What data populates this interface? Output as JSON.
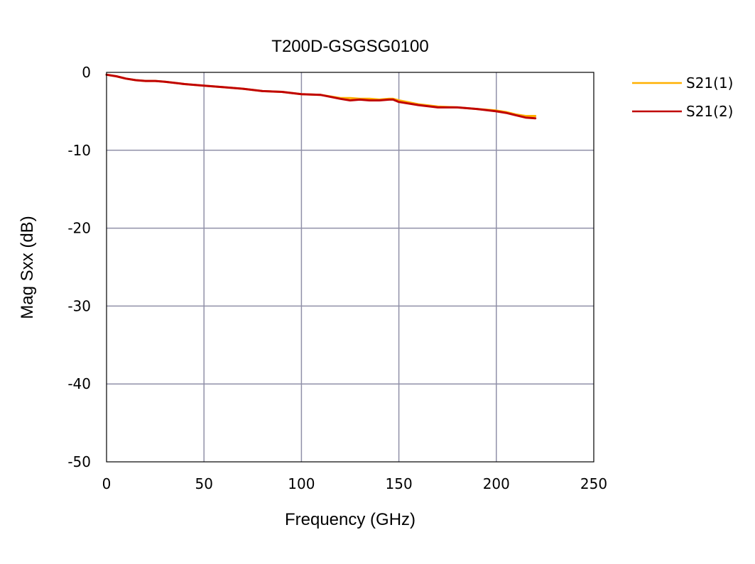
{
  "chart_data": {
    "type": "line",
    "title": "T200D-GSGSG0100",
    "xlabel": "Frequency (GHz)",
    "ylabel": "Mag Sxx (dB)",
    "xlim": [
      0,
      250
    ],
    "ylim": [
      -50,
      0
    ],
    "xticks": [
      "0",
      "50",
      "100",
      "150",
      "200",
      "250"
    ],
    "yticks": [
      "0",
      "-10",
      "-20",
      "-30",
      "-40",
      "-50"
    ],
    "grid": true,
    "legend_position": "right",
    "series": [
      {
        "name": "S21(1)",
        "color": "#FFB000",
        "x": [
          0,
          5,
          10,
          15,
          20,
          25,
          30,
          40,
          50,
          60,
          70,
          80,
          90,
          100,
          110,
          120,
          125,
          130,
          135,
          140,
          145,
          147,
          150,
          160,
          170,
          180,
          190,
          200,
          205,
          210,
          215,
          220
        ],
        "y": [
          -0.3,
          -0.5,
          -0.8,
          -1.0,
          -1.1,
          -1.1,
          -1.2,
          -1.5,
          -1.7,
          -1.9,
          -2.1,
          -2.4,
          -2.5,
          -2.8,
          -2.9,
          -3.3,
          -3.3,
          -3.4,
          -3.4,
          -3.5,
          -3.4,
          -3.4,
          -3.6,
          -4.1,
          -4.4,
          -4.5,
          -4.7,
          -4.9,
          -5.1,
          -5.4,
          -5.6,
          -5.6
        ]
      },
      {
        "name": "S21(2)",
        "color": "#C00000",
        "x": [
          0,
          5,
          10,
          15,
          20,
          25,
          30,
          40,
          50,
          60,
          70,
          80,
          90,
          100,
          110,
          120,
          125,
          130,
          135,
          140,
          145,
          147,
          150,
          160,
          170,
          180,
          190,
          200,
          205,
          210,
          215,
          220
        ],
        "y": [
          -0.3,
          -0.5,
          -0.8,
          -1.0,
          -1.1,
          -1.1,
          -1.2,
          -1.5,
          -1.7,
          -1.9,
          -2.1,
          -2.4,
          -2.5,
          -2.8,
          -2.9,
          -3.4,
          -3.6,
          -3.5,
          -3.6,
          -3.6,
          -3.5,
          -3.5,
          -3.8,
          -4.2,
          -4.5,
          -4.5,
          -4.7,
          -5.0,
          -5.2,
          -5.5,
          -5.8,
          -5.9
        ]
      }
    ]
  }
}
